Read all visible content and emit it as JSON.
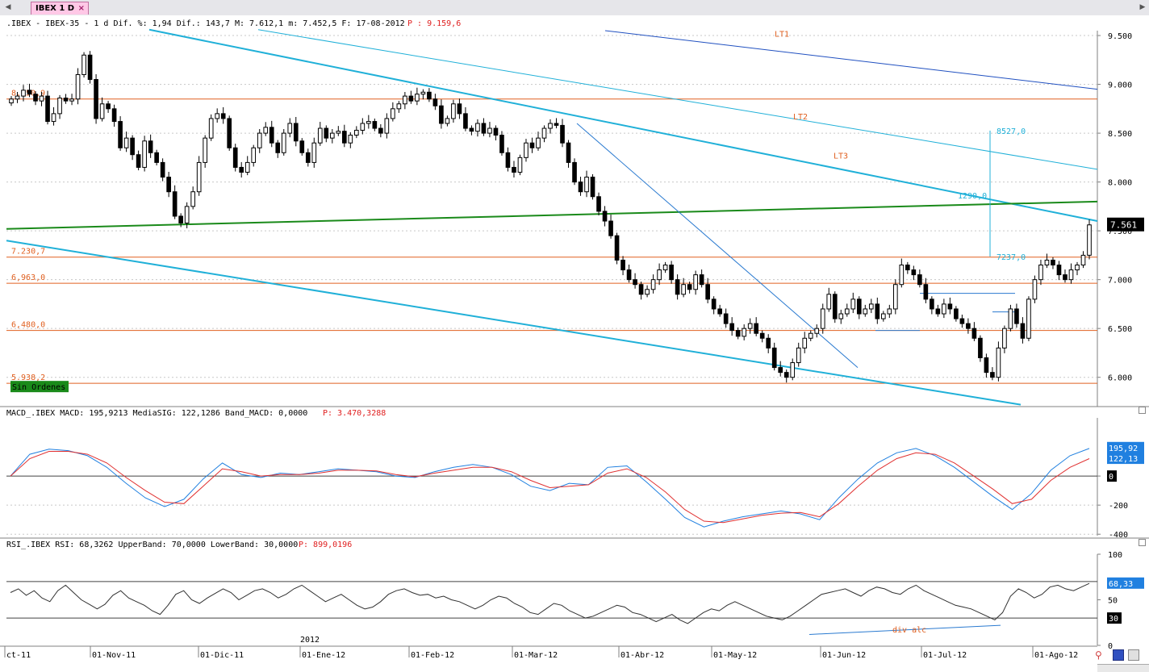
{
  "tab": {
    "label": "IBEX 1 D",
    "close": "×"
  },
  "nav": {
    "left": "◀",
    "right": "▶"
  },
  "price_header": {
    "text": ".IBEX - IBEX-35 -  1 d Dif. %: 1,94 Dif.: 143,7 M: 7.612,1 m: 7.452,5 F: 17-08-2012",
    "p_label": "P : 9.159,6"
  },
  "macd_header": {
    "text": "MACD_.IBEX MACD: 195,9213 MediaSIG: 122,1286 Band_MACD: 0,0000",
    "p_label": "P: 3.470,3288"
  },
  "rsi_header": {
    "text": "RSI_.IBEX RSI: 68,3262 UpperBand: 70,0000 LowerBand: 30,0000",
    "p_label": "P: 899,0196"
  },
  "colors": {
    "bg": "#ffffff",
    "up": "#000000",
    "down": "#000000",
    "hline": "#e06020",
    "green": "#1a8a1a",
    "cyan": "#20b0d8",
    "blue": "#2050c0",
    "macd": "#2080e0",
    "signal": "#e03030",
    "rsi": "#303030"
  },
  "icons": [
    "search-icon",
    "save-icon",
    "print-icon"
  ],
  "chart_data": [
    {
      "type": "candlestick",
      "title": ".IBEX - IBEX-35 - 1 d",
      "ylim": [
        5700,
        9550
      ],
      "yticks": [
        6000,
        6500,
        7000,
        7500,
        8000,
        8500,
        9000,
        9500
      ],
      "ytick_labels": [
        "6.000",
        "6.500",
        "7.000",
        "7.500",
        "8.000",
        "8.500",
        "9.000",
        "9.500"
      ],
      "xtick_labels": [
        "ct-11",
        "01-Nov-11",
        "01-Dic-11",
        "01-Ene-12",
        "01-Feb-12",
        "01-Mar-12",
        "01-Abr-12",
        "01-May-12",
        "01-Jun-12",
        "01-Jul-12",
        "01-Ago-12"
      ],
      "year_label": "2012",
      "last_price_label": "7.561",
      "hlines": [
        {
          "value": 8850,
          "label": "8.850,9"
        },
        {
          "value": 7230.7,
          "label": "7.230,7"
        },
        {
          "value": 6963.0,
          "label": "6,963,0"
        },
        {
          "value": 6480.0,
          "label": "6,480,0"
        },
        {
          "value": 5938.2,
          "label": "5.938,2"
        }
      ],
      "trendline_labels": [
        "LT1",
        "LT2",
        "LT3"
      ],
      "measure": {
        "top": "8527,0",
        "mid": "1290,0",
        "bottom": "7237,0"
      },
      "badge": "Sin Ordenes",
      "closes": [
        8850,
        8880,
        8940,
        8900,
        8830,
        8880,
        8620,
        8700,
        8860,
        8830,
        8850,
        9100,
        9300,
        9050,
        8650,
        8800,
        8750,
        8620,
        8350,
        8450,
        8280,
        8150,
        8420,
        8300,
        8200,
        8050,
        7900,
        7650,
        7580,
        7750,
        7900,
        8200,
        8450,
        8650,
        8700,
        8650,
        8350,
        8150,
        8100,
        8200,
        8350,
        8500,
        8560,
        8400,
        8300,
        8500,
        8600,
        8420,
        8300,
        8200,
        8400,
        8550,
        8450,
        8500,
        8520,
        8400,
        8480,
        8530,
        8600,
        8620,
        8550,
        8500,
        8650,
        8750,
        8800,
        8880,
        8830,
        8900,
        8920,
        8850,
        8780,
        8600,
        8650,
        8800,
        8700,
        8550,
        8520,
        8600,
        8500,
        8550,
        8480,
        8300,
        8150,
        8100,
        8250,
        8400,
        8350,
        8450,
        8550,
        8600,
        8580,
        8400,
        8200,
        8000,
        7900,
        8050,
        7850,
        7700,
        7600,
        7450,
        7200,
        7100,
        7000,
        6950,
        6850,
        6900,
        7000,
        7100,
        7150,
        7000,
        6850,
        6950,
        6900,
        7050,
        6950,
        6800,
        6700,
        6650,
        6550,
        6480,
        6420,
        6500,
        6550,
        6450,
        6400,
        6300,
        6100,
        6050,
        6000,
        6150,
        6300,
        6400,
        6450,
        6500,
        6700,
        6850,
        6600,
        6650,
        6700,
        6800,
        6650,
        6700,
        6750,
        6600,
        6650,
        6700,
        6950,
        7150,
        7100,
        7050,
        6950,
        6800,
        6700,
        6650,
        6750,
        6700,
        6600,
        6550,
        6500,
        6400,
        6200,
        6050,
        6000,
        6300,
        6500,
        6700,
        6550,
        6400,
        6800,
        7000,
        7150,
        7200,
        7150,
        7050,
        7000,
        7100,
        7150,
        7250,
        7561
      ]
    },
    {
      "type": "line",
      "title": "MACD_.IBEX",
      "ylim": [
        -410,
        400
      ],
      "yticks": [
        0,
        -200,
        -400
      ],
      "ytick_labels": [
        "0",
        "-200",
        "-400"
      ],
      "value_labels": {
        "macd": "195,92",
        "signal": "122,13",
        "zero": "0"
      },
      "series": [
        {
          "name": "MACD",
          "role": "macd",
          "values": [
            0,
            150,
            185,
            175,
            140,
            60,
            -50,
            -150,
            -210,
            -160,
            -20,
            90,
            10,
            -10,
            20,
            10,
            30,
            50,
            40,
            30,
            0,
            -10,
            30,
            60,
            80,
            60,
            10,
            -70,
            -100,
            -50,
            -60,
            60,
            70,
            -40,
            -160,
            -285,
            -350,
            -310,
            -280,
            -260,
            -240,
            -260,
            -300,
            -150,
            -20,
            90,
            160,
            190,
            140,
            60,
            -40,
            -140,
            -230,
            -120,
            40,
            140,
            190
          ]
        },
        {
          "name": "MediaSIG",
          "role": "signal",
          "values": [
            0,
            120,
            170,
            170,
            150,
            90,
            -10,
            -100,
            -180,
            -190,
            -70,
            50,
            30,
            0,
            10,
            10,
            20,
            40,
            40,
            35,
            10,
            -5,
            20,
            40,
            60,
            60,
            30,
            -30,
            -80,
            -70,
            -60,
            20,
            50,
            -10,
            -110,
            -230,
            -310,
            -320,
            -295,
            -270,
            -255,
            -250,
            -280,
            -190,
            -70,
            40,
            120,
            160,
            150,
            90,
            0,
            -90,
            -190,
            -160,
            -30,
            60,
            120
          ]
        }
      ]
    },
    {
      "type": "line",
      "title": "RSI_.IBEX",
      "ylim": [
        0,
        100
      ],
      "yticks": [
        100,
        50,
        0
      ],
      "ytick_labels": [
        "100",
        "50",
        "0"
      ],
      "upper_band": 70,
      "lower_band": 30,
      "value_labels": {
        "rsi": "68,33",
        "lower": "30"
      },
      "annotation": "div alc",
      "series": [
        {
          "name": "RSI",
          "role": "rsi",
          "values": [
            58,
            62,
            55,
            60,
            52,
            48,
            60,
            66,
            58,
            50,
            45,
            40,
            45,
            55,
            60,
            52,
            48,
            44,
            38,
            34,
            44,
            56,
            60,
            50,
            46,
            52,
            57,
            62,
            58,
            50,
            55,
            60,
            62,
            58,
            52,
            56,
            62,
            66,
            60,
            54,
            48,
            52,
            56,
            50,
            44,
            40,
            42,
            48,
            56,
            60,
            62,
            58,
            55,
            56,
            52,
            54,
            50,
            48,
            44,
            40,
            44,
            50,
            54,
            52,
            46,
            42,
            36,
            34,
            40,
            46,
            44,
            38,
            34,
            30,
            32,
            36,
            40,
            44,
            42,
            36,
            34,
            30,
            26,
            30,
            34,
            28,
            24,
            30,
            36,
            40,
            38,
            44,
            48,
            44,
            40,
            36,
            32,
            30,
            28,
            32,
            38,
            44,
            50,
            56,
            58,
            60,
            62,
            58,
            54,
            60,
            64,
            62,
            58,
            56,
            62,
            66,
            60,
            56,
            52,
            48,
            44,
            42,
            40,
            36,
            32,
            28,
            36,
            54,
            62,
            58,
            52,
            56,
            64,
            66,
            62,
            60,
            64,
            68
          ]
        }
      ]
    }
  ]
}
